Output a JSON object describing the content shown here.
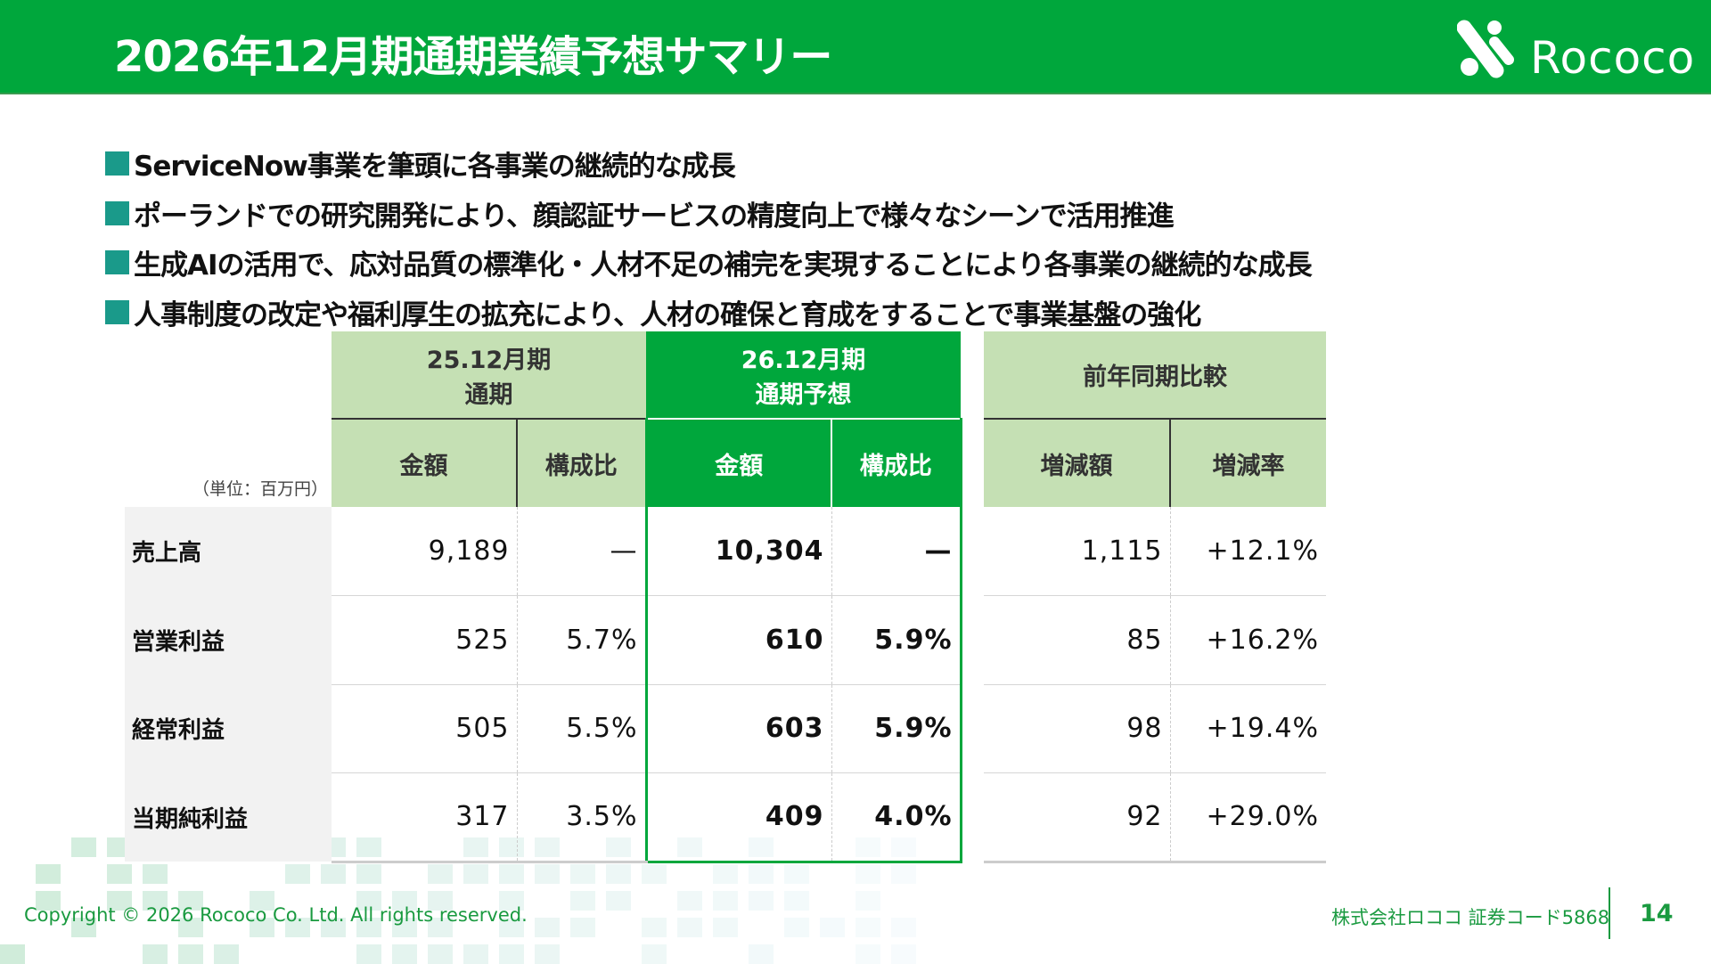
{
  "header": {
    "title": "2026年12月期通期業績予想サマリー",
    "logo_text": "Rococo"
  },
  "bullets": [
    "ServiceNow事業を筆頭に各事業の継続的な成長",
    "ポーランドでの研究開発により、顔認証サービスの精度向上で様々なシーンで活用推進",
    "生成AIの活用で、応対品質の標準化・人材不足の補完を実現することにより各事業の継続的な成長",
    "人事制度の改定や福利厚生の拡充により、人材の確保と育成をすることで事業基盤の強化"
  ],
  "table": {
    "unit": "（単位：百万円）",
    "groups": [
      {
        "line1": "25.12月期",
        "line2": "通期"
      },
      {
        "line1": "26.12月期",
        "line2": "通期予想"
      },
      {
        "line1": "前年同期比較"
      }
    ],
    "subheaders": [
      "金額",
      "構成比",
      "金額",
      "構成比",
      "増減額",
      "増減率"
    ],
    "rows": [
      {
        "label": "売上高",
        "values": [
          "9,189",
          "—",
          "10,304",
          "—",
          "1,115",
          "+12.1%"
        ]
      },
      {
        "label": "営業利益",
        "values": [
          "525",
          "5.7%",
          "610",
          "5.9%",
          "85",
          "+16.2%"
        ]
      },
      {
        "label": "経常利益",
        "values": [
          "505",
          "5.5%",
          "603",
          "5.9%",
          "98",
          "+19.4%"
        ]
      },
      {
        "label": "当期純利益",
        "values": [
          "317",
          "3.5%",
          "409",
          "4.0%",
          "92",
          "+29.0%"
        ]
      }
    ]
  },
  "footer": {
    "copyright": "Copyright © 2026 Rococo Co. Ltd. All rights reserved.",
    "company": "株式会社ロココ 証券コード5868",
    "page": "14"
  },
  "colors": {
    "brand": "#00a73c",
    "light": "#c5e0b4",
    "bullet": "#1a9a8a"
  }
}
